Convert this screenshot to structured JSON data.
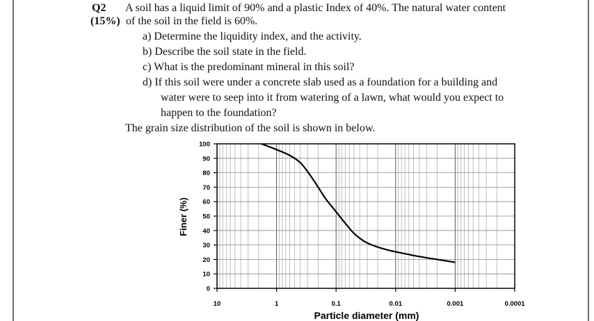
{
  "question": {
    "number": "Q2",
    "marks": "(15%)",
    "intro_line1": "A soil has a liquid limit of 90% and a plastic Index of 40%. The natural water content",
    "intro_line2": "of the soil in the field is 60%.",
    "parts": [
      {
        "lines": [
          "a) Determine the liquidity index, and the activity."
        ]
      },
      {
        "lines": [
          "b) Describe the soil state in the field."
        ]
      },
      {
        "lines": [
          "c) What is the predominant mineral in this soil?"
        ]
      },
      {
        "lines": [
          "d) If this soil were under a concrete slab used as a foundation for a building and",
          "water were to seep into it from watering of a lawn, what would you expect to",
          "happen to the foundation?"
        ]
      }
    ],
    "grain_text": "The grain size distribution of the soil is shown in below."
  },
  "chart_data": {
    "type": "line",
    "xlabel": "Particle diameter (mm)",
    "ylabel": "Finer (%)",
    "x_scale": "log",
    "x_reversed": true,
    "xlim": [
      10,
      0.0001
    ],
    "ylim": [
      0,
      100
    ],
    "x_ticks": [
      {
        "value": 10,
        "label": "10"
      },
      {
        "value": 1,
        "label": "1"
      },
      {
        "value": 0.1,
        "label": "0.1"
      },
      {
        "value": 0.01,
        "label": "0.01"
      },
      {
        "value": 0.001,
        "label": "0.001"
      },
      {
        "value": 0.0001,
        "label": "0.0001"
      }
    ],
    "y_ticks": [
      0,
      10,
      20,
      30,
      40,
      50,
      60,
      70,
      80,
      90,
      100
    ],
    "grid": true,
    "series": [
      {
        "color": "#000000",
        "x": [
          1.8,
          1.0,
          0.6,
          0.4,
          0.28,
          0.2,
          0.15,
          0.1,
          0.07,
          0.05,
          0.035,
          0.025,
          0.018,
          0.012,
          0.007,
          0.004,
          0.002,
          0.001
        ],
        "y": [
          100,
          96,
          92,
          87,
          79,
          70,
          62,
          53,
          45,
          38,
          33,
          30,
          28,
          26,
          24,
          22,
          20,
          18
        ]
      }
    ]
  }
}
